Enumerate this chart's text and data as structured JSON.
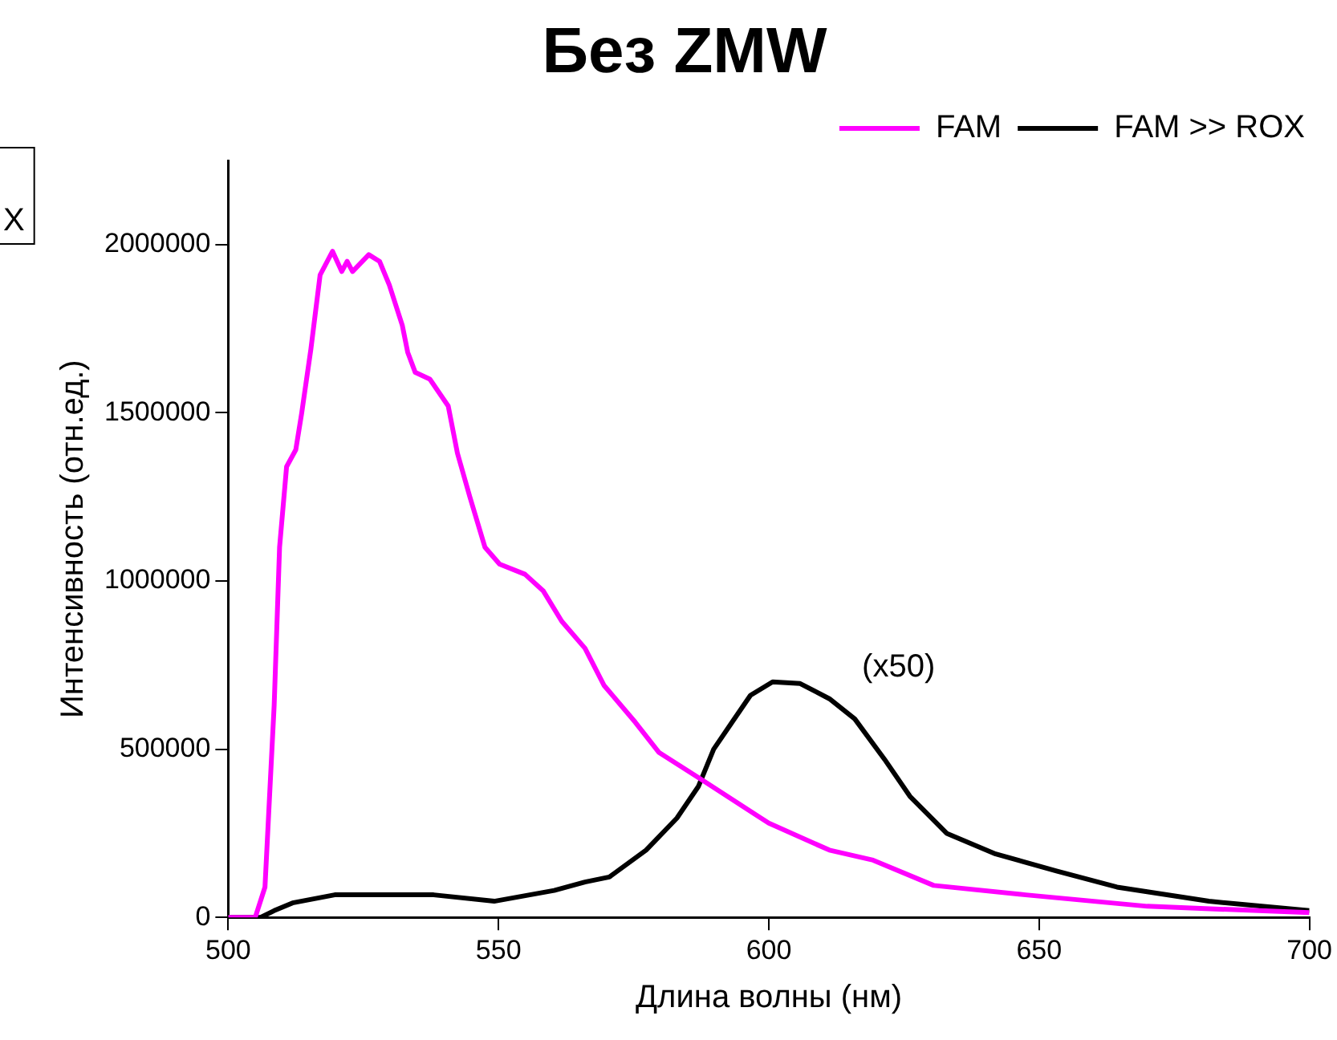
{
  "chart_data": {
    "type": "line",
    "title": "Без ZMW",
    "xlabel": "Длина волны (нм)",
    "ylabel": "Интенсивность (отн.ед.)",
    "xlim": [
      500,
      700
    ],
    "xticks": [
      500,
      550,
      600,
      650,
      700
    ],
    "ylim": [
      0,
      2250000
    ],
    "yticks": [
      0,
      500000,
      1000000,
      1500000,
      2000000
    ],
    "grid": false,
    "legend": "top right",
    "marker": "none",
    "line_style": "solid",
    "annotations": [
      "(x50)",
      "X"
    ],
    "series": [
      {
        "name": "FAM",
        "color": "#ff00ff",
        "x": [
          500,
          505,
          506.8,
          508.5,
          509.5,
          510.8,
          512.5,
          513.6,
          515.3,
          517,
          519.3,
          521,
          522,
          523,
          526,
          528,
          529.8,
          532.2,
          533.2,
          534.6,
          537.3,
          540.7,
          542.4,
          544.7,
          547.5,
          550.2,
          554.9,
          558.3,
          561.7,
          566,
          569.5,
          575.3,
          579.7,
          587.5,
          600,
          611.2,
          619.3,
          630.5,
          647.5,
          670,
          700
        ],
        "values": [
          0,
          0,
          90000,
          630000,
          1100000,
          1340000,
          1390000,
          1500000,
          1690000,
          1910000,
          1980000,
          1920000,
          1950000,
          1920000,
          1970000,
          1950000,
          1880000,
          1760000,
          1680000,
          1620000,
          1600000,
          1520000,
          1380000,
          1250000,
          1100000,
          1050000,
          1020000,
          970000,
          880000,
          800000,
          690000,
          580000,
          490000,
          410000,
          280000,
          200000,
          170000,
          95000,
          67000,
          33000,
          14000
        ]
      },
      {
        "name": "FAM >> ROX",
        "color": "#000000",
        "x": [
          500,
          506,
          508.5,
          511.9,
          519.7,
          538,
          549.2,
          560.3,
          566,
          570.5,
          577.3,
          583,
          587,
          589.8,
          593.2,
          596.6,
          600.7,
          605.8,
          611.2,
          615.9,
          621.4,
          626.1,
          632.9,
          641.7,
          653.2,
          664.4,
          681.4,
          700
        ],
        "values": [
          0,
          0,
          20000,
          43000,
          67000,
          67000,
          48000,
          80000,
          105000,
          120000,
          200000,
          295000,
          390000,
          500000,
          580000,
          660000,
          700000,
          695000,
          650000,
          590000,
          470000,
          360000,
          250000,
          190000,
          138000,
          90000,
          48000,
          20000
        ]
      }
    ]
  }
}
